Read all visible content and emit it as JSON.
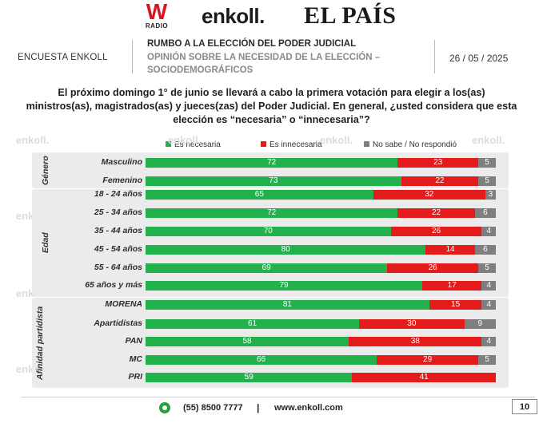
{
  "logos": {
    "w_mark": "W",
    "w_radio": "RADIO",
    "enkoll": "enkoll.",
    "elpais": "EL PAÍS"
  },
  "header": {
    "left": "ENCUESTA ENKOLL",
    "title": "RUMBO A LA ELECCIÓN DEL PODER JUDICIAL",
    "subtitle": "OPINIÓN SOBRE LA NECESIDAD DE LA ELECCIÓN  –  SOCIODEMOGRÁFICOS",
    "date": "26 / 05 / 2025"
  },
  "question": "El próximo domingo 1° de junio se llevará a cabo la primera votación para elegir a los(as) ministros(as), magistrados(as) y jueces(zas) del Poder Judicial. En general, ¿usted considera que esta elección es “necesaria” o “innecesaria”?",
  "watermark": "enkoll.",
  "colors": {
    "necesaria": "#22b14c",
    "innecesaria": "#e31b1b",
    "no_sabe": "#7f7f7f",
    "panel": "#ebebeb"
  },
  "chart_data": {
    "type": "bar",
    "orientation": "horizontal",
    "stacked": true,
    "percent_stacked": true,
    "xlim": [
      0,
      100
    ],
    "series": [
      {
        "name": "Es necesaria",
        "color": "#22b14c"
      },
      {
        "name": "Es innecesaria",
        "color": "#e31b1b"
      },
      {
        "name": "No sabe / No respondió",
        "color": "#7f7f7f"
      }
    ],
    "legend_position": "top",
    "groups": [
      {
        "label": "Género",
        "rows": [
          {
            "category": "Masculino",
            "values": [
              72,
              23,
              5
            ]
          },
          {
            "category": "Femenino",
            "values": [
              73,
              22,
              5
            ]
          }
        ]
      },
      {
        "label": "Edad",
        "rows": [
          {
            "category": "18 - 24 años",
            "values": [
              65,
              32,
              3
            ]
          },
          {
            "category": "25 - 34 años",
            "values": [
              72,
              22,
              6
            ]
          },
          {
            "category": "35 - 44 años",
            "values": [
              70,
              26,
              4
            ]
          },
          {
            "category": "45 - 54 años",
            "values": [
              80,
              14,
              6
            ]
          },
          {
            "category": "55 - 64 años",
            "values": [
              69,
              26,
              5
            ]
          },
          {
            "category": "65 años y más",
            "values": [
              79,
              17,
              4
            ]
          }
        ]
      },
      {
        "label": "Afinidad partidista",
        "rows": [
          {
            "category": "MORENA",
            "values": [
              81,
              15,
              4
            ]
          },
          {
            "category": "Apartidistas",
            "values": [
              61,
              30,
              9
            ]
          },
          {
            "category": "PAN",
            "values": [
              58,
              38,
              4
            ]
          },
          {
            "category": "MC",
            "values": [
              66,
              29,
              5
            ]
          },
          {
            "category": "PRI",
            "values": [
              59,
              41,
              null
            ]
          }
        ]
      }
    ]
  },
  "footer": {
    "phone": "(55) 8500 7777",
    "separator": "|",
    "website": "www.enkoll.com",
    "page": "10"
  }
}
